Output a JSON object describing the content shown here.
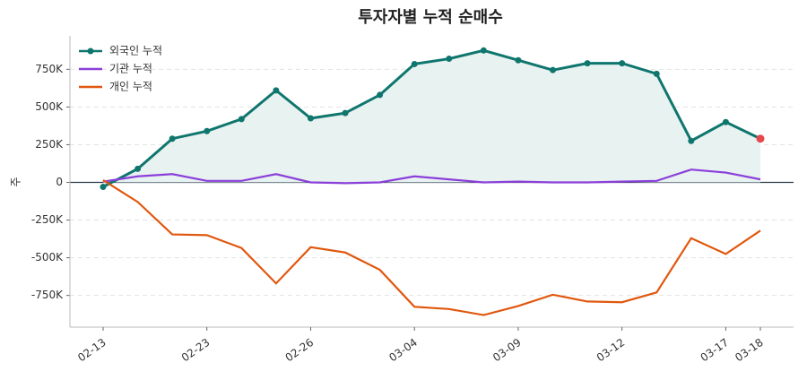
{
  "chart_data": {
    "type": "line",
    "title": "투자자별 누적 순매수",
    "ylabel": "주",
    "x": [
      "02-13",
      null,
      null,
      "02-23",
      null,
      null,
      "02-26",
      null,
      null,
      "03-04",
      null,
      null,
      "03-09",
      null,
      null,
      "03-12",
      null,
      null,
      "03-17",
      "03-18"
    ],
    "series": [
      {
        "name": "외국인 누적",
        "color": "#0f766e",
        "marker": true,
        "fill": "#e6f1f0",
        "last_color": "#e5484d",
        "values": [
          -30000,
          90000,
          290000,
          340000,
          420000,
          610000,
          425000,
          460000,
          580000,
          785000,
          820000,
          875000,
          810000,
          745000,
          790000,
          790000,
          720000,
          275000,
          400000,
          290000
        ]
      },
      {
        "name": "기관 누적",
        "color": "#8b3fd9",
        "marker": false,
        "values": [
          5000,
          40000,
          55000,
          10000,
          10000,
          55000,
          0,
          -5000,
          0,
          40000,
          20000,
          0,
          5000,
          0,
          0,
          5000,
          10000,
          85000,
          65000,
          20000
        ]
      },
      {
        "name": "개인 누적",
        "color": "#e0580f",
        "marker": false,
        "values": [
          15000,
          -130000,
          -345000,
          -350000,
          -435000,
          -670000,
          -430000,
          -465000,
          -580000,
          -825000,
          -840000,
          -880000,
          -820000,
          -745000,
          -790000,
          -795000,
          -730000,
          -370000,
          -475000,
          -320000
        ]
      }
    ],
    "ylim": [
      -960000,
      960000
    ],
    "yticks": [
      {
        "value": -750000,
        "label": "-750K"
      },
      {
        "value": -500000,
        "label": "-500K"
      },
      {
        "value": -250000,
        "label": "-250K"
      },
      0,
      {
        "value": 250000,
        "label": "250K"
      },
      {
        "value": 500000,
        "label": "500K"
      },
      {
        "value": 750000,
        "label": "750K"
      }
    ],
    "grid": true,
    "legend": "upper-left"
  }
}
